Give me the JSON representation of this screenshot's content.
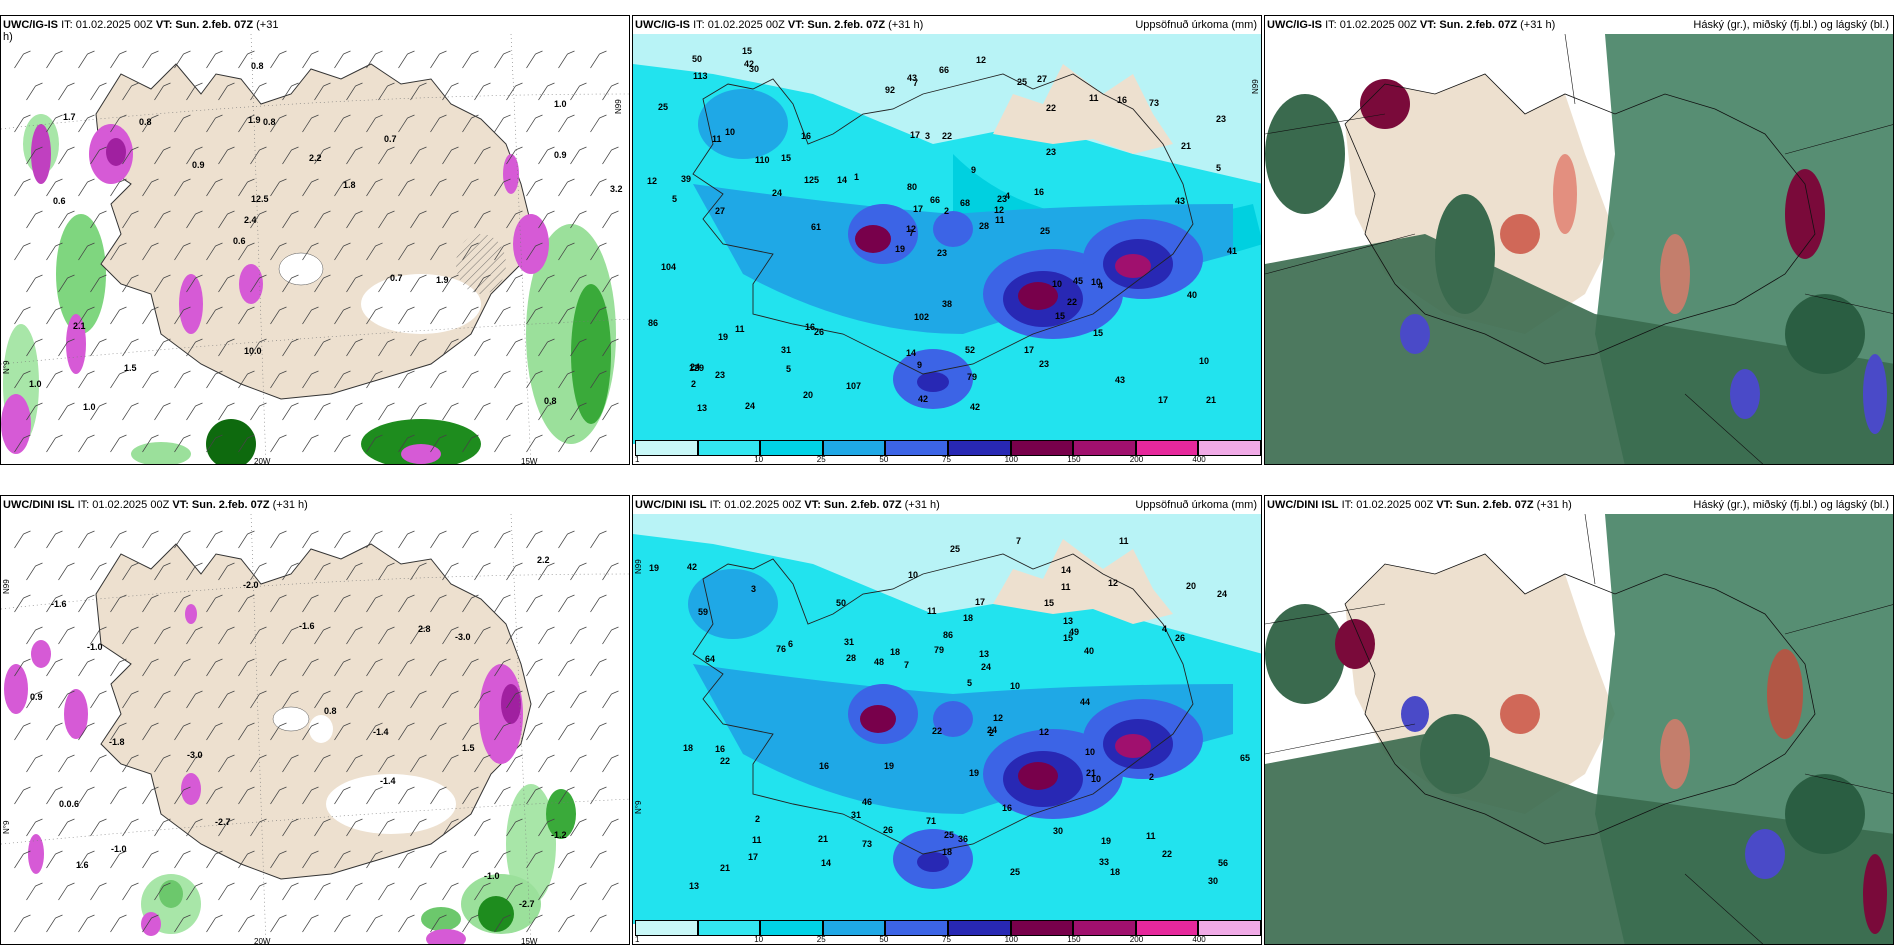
{
  "panels": {
    "p1": {
      "model": "UWC/IG-IS",
      "it": "IT: 01.02.2025 00Z",
      "vt_label": "VT:",
      "vt": "Sun. 2.feb. 07Z",
      "step": "(+31",
      "step_wrap": "h)",
      "product": ""
    },
    "p2": {
      "model": "UWC/IG-IS",
      "it": "IT: 01.02.2025 00Z",
      "vt_label": "VT:",
      "vt": "Sun. 2.feb. 07Z",
      "step": "(+31 h)",
      "product": "Uppsöfnuð úrkoma (mm)"
    },
    "p3": {
      "model": "UWC/IG-IS",
      "it": "IT: 01.02.2025 00Z",
      "vt_label": "VT:",
      "vt": "Sun. 2.feb. 07Z",
      "step": "(+31 h)",
      "product": "Háský (gr.), miðský (fj.bl.) og lágský (bl.)"
    },
    "p4": {
      "model": "UWC/DINI ISL",
      "it": "IT: 01.02.2025 00Z",
      "vt_label": "VT:",
      "vt": "Sun. 2.feb. 07Z",
      "step": "(+31 h)",
      "product": ""
    },
    "p5": {
      "model": "UWC/DINI ISL",
      "it": "IT: 01.02.2025 00Z",
      "vt_label": "VT:",
      "vt": "Sun. 2.feb. 07Z",
      "step": "(+31 h)",
      "product": "Uppsöfnuð úrkoma (mm)"
    },
    "p6": {
      "model": "UWC/DINI ISL",
      "it": "IT: 01.02.2025 00Z",
      "vt_label": "VT:",
      "vt": "Sun. 2.feb. 07Z",
      "step": "(+31 h)",
      "product": "Háský (gr.), miðský (fj.bl.) og lágský (bl.)"
    }
  },
  "axis_labels": {
    "lat66": "N99",
    "lat64": "N°9",
    "lon20": "20W",
    "lon15": "15W"
  },
  "precip_colorbar": {
    "labels": [
      "1",
      "10",
      "25",
      "50",
      "75",
      "100",
      "150",
      "200",
      "400"
    ],
    "colors": [
      "#c8f7f7",
      "#33e6f0",
      "#00d2e6",
      "#1fa8e6",
      "#3c64e6",
      "#2828b4",
      "#78004b",
      "#a0106e",
      "#e6289c",
      "#f0aae6"
    ]
  },
  "wind_values_ig": [
    "0.8",
    "0.6",
    "1.0",
    "0.6",
    "0.7",
    "1.0",
    "1.9",
    "2.2",
    "2.1",
    "0.9",
    "1.0",
    "1.5",
    "0.8",
    "1.8",
    "1.9",
    "1.7",
    "0.8",
    "3.2",
    "0.7",
    "0.9",
    "2.4",
    "10.0",
    "12.5",
    "0.8"
  ],
  "wind_values_dini": [
    "-2.7",
    "-1.8",
    "-1.4",
    "-1.6",
    "-1.2",
    "-1.0",
    "-1.0",
    "-3.0",
    "-3.0",
    "-1.6",
    "2.8",
    "-1.0",
    "-2.7",
    "-2.0",
    "-1.4",
    "0.0.6",
    "1.5",
    "0.8",
    "0.9",
    "1.6",
    "2.2"
  ],
  "precip_values_ig": [
    "23",
    "11",
    "7",
    "24",
    "23",
    "26",
    "27",
    "22",
    "22",
    "28",
    "30",
    "21",
    "27",
    "23",
    "19",
    "23",
    "24",
    "17",
    "9",
    "11",
    "1",
    "2",
    "5",
    "3",
    "4",
    "4",
    "10",
    "7",
    "5",
    "10",
    "5",
    "12",
    "14",
    "17",
    "16",
    "11",
    "16",
    "17",
    "10",
    "10",
    "12",
    "14",
    "24",
    "15",
    "20",
    "12",
    "12",
    "13",
    "9",
    "11",
    "19",
    "21",
    "25",
    "22",
    "23",
    "31",
    "42",
    "50",
    "52",
    "73",
    "66",
    "61",
    "39",
    "15",
    "16",
    "15",
    "25",
    "92",
    "66",
    "86",
    "102",
    "107",
    "45",
    "125",
    "129",
    "113",
    "110",
    "104",
    "80",
    "79",
    "68",
    "23",
    "25",
    "40",
    "42",
    "43",
    "38",
    "43",
    "42",
    "17",
    "43",
    "41",
    "16",
    "15",
    "2"
  ],
  "precip_values_dini": [
    "21",
    "2",
    "12",
    "19",
    "10",
    "7",
    "11",
    "14",
    "19",
    "31",
    "30",
    "28",
    "26",
    "25",
    "30",
    "31",
    "21",
    "22",
    "22",
    "24",
    "19",
    "17",
    "18",
    "12",
    "10",
    "11",
    "18",
    "18",
    "26",
    "16",
    "22",
    "19",
    "17",
    "13",
    "24",
    "25",
    "25",
    "40",
    "64",
    "71",
    "76",
    "46",
    "50",
    "73",
    "44",
    "48",
    "86",
    "36",
    "65",
    "56",
    "59",
    "79",
    "42",
    "33",
    "2",
    "3",
    "4",
    "7",
    "10",
    "10",
    "24",
    "13",
    "49",
    "20",
    "18",
    "16",
    "11",
    "11",
    "14",
    "13",
    "6",
    "2",
    "5",
    "16",
    "21",
    "18",
    "15",
    "12",
    "11",
    "15"
  ]
}
